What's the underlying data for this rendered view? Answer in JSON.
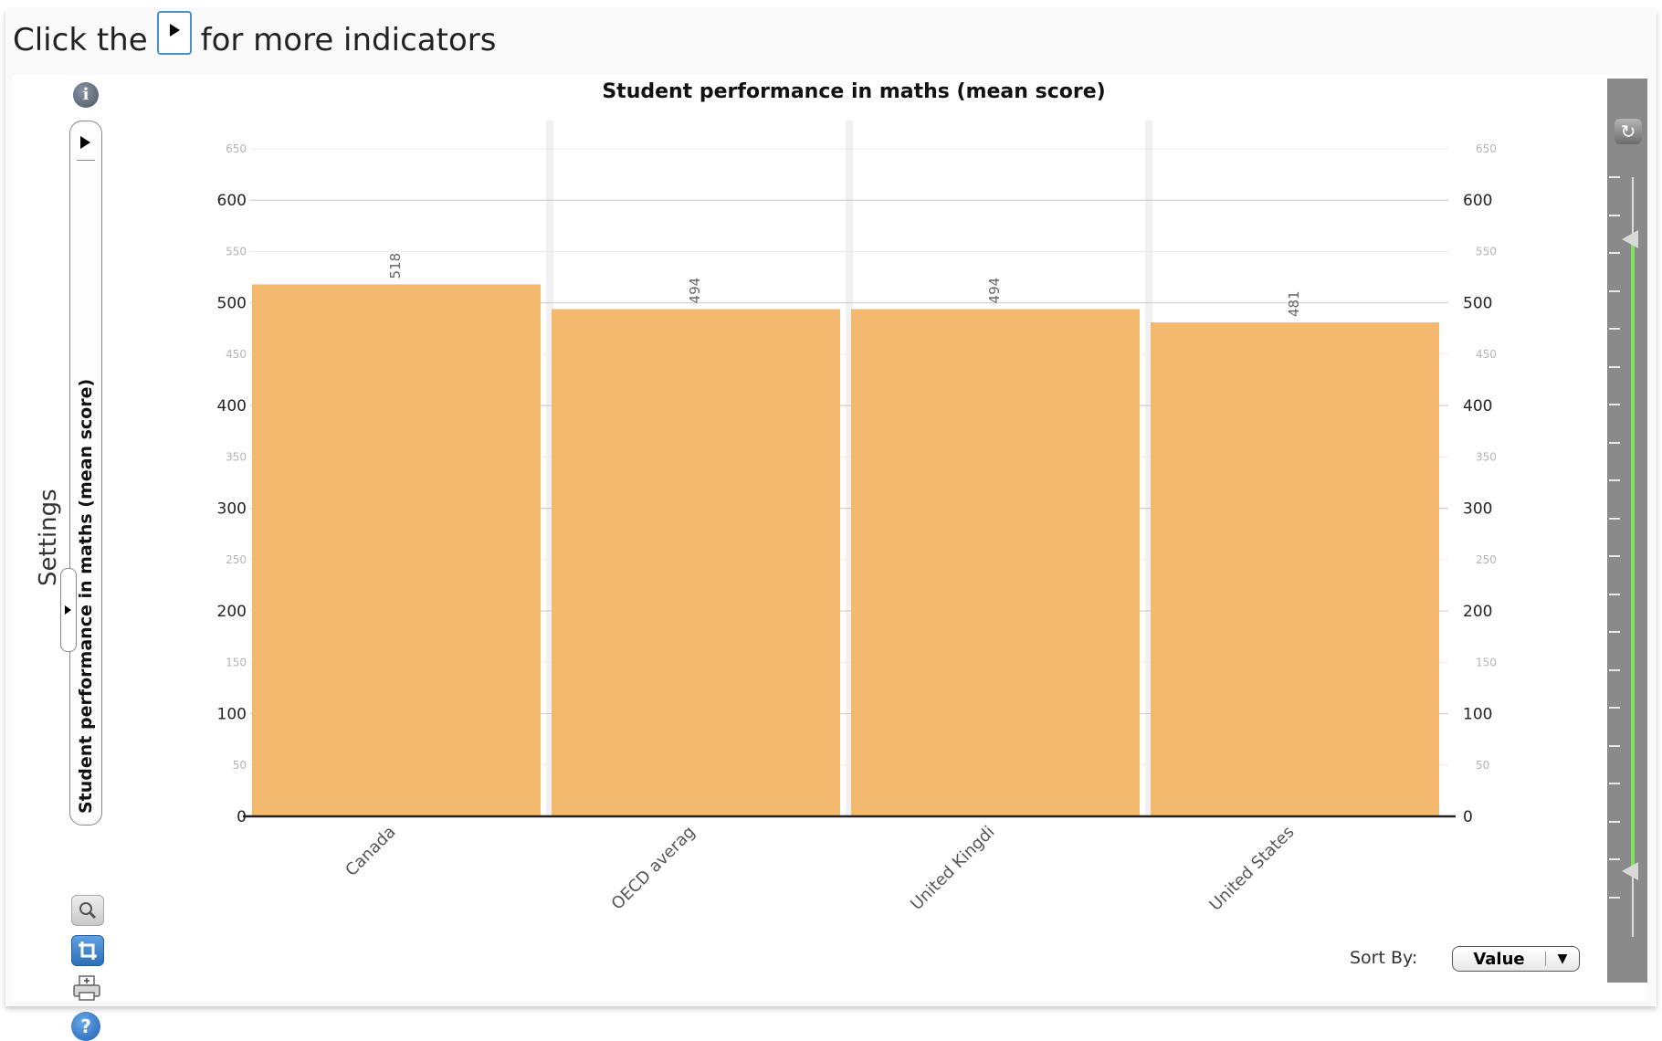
{
  "header": {
    "text_before": "Click the",
    "text_after": "for more indicators"
  },
  "sidebar": {
    "indicator_label": "Student performance in maths (mean score)",
    "settings_label": "Settings",
    "icons": [
      "info-icon",
      "zoom-icon",
      "crop-icon",
      "print-icon",
      "help-icon"
    ]
  },
  "controls": {
    "sort_label": "Sort By:",
    "sort_value": "Value"
  },
  "colors": {
    "bar": "#f3b96f",
    "gridline": "#d0d0d0",
    "rail": "#8a8a8a",
    "rail_range": "#7fe061"
  },
  "chart_data": {
    "type": "bar",
    "title": "Student performance in maths (mean score)",
    "categories": [
      "Canada",
      "OECD averag",
      "United Kingdi",
      "United States"
    ],
    "values": [
      518,
      494,
      494,
      481
    ],
    "data_labels": [
      "518",
      "494",
      "494",
      "481"
    ],
    "ylim": [
      0,
      650
    ],
    "major_ticks": [
      "0",
      "100",
      "200",
      "300",
      "400",
      "500",
      "600"
    ],
    "minor_ticks": [
      "50",
      "150",
      "250",
      "350",
      "450",
      "550",
      "650"
    ],
    "grid": true,
    "y_axis_both_sides": true,
    "legend": "none"
  }
}
